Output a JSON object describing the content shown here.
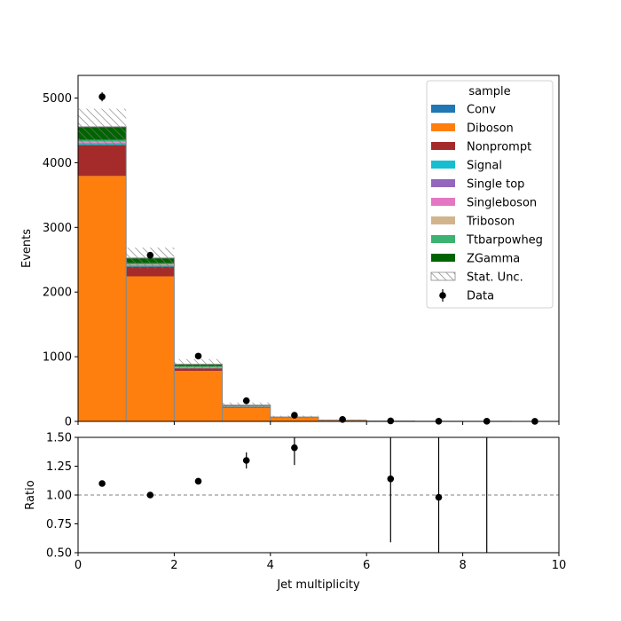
{
  "chart_data": {
    "type": "bar",
    "stacked": true,
    "x_edges": [
      0,
      1,
      2,
      3,
      4,
      5,
      6,
      7,
      8,
      9,
      10
    ],
    "xlabel": "Jet multiplicity",
    "ylabel_top": "Events",
    "ylabel_bottom": "Ratio",
    "xlim": [
      0,
      10
    ],
    "ylim_top": [
      0,
      5350
    ],
    "ylim_bottom": [
      0.5,
      1.5
    ],
    "x_ticks": [
      0,
      2,
      4,
      6,
      8,
      10
    ],
    "y_ticks_top": [
      0,
      1000,
      2000,
      3000,
      4000,
      5000
    ],
    "y_ticks_bottom": [
      0.5,
      0.75,
      1.0,
      1.25,
      1.5
    ],
    "y_tick_labels_bottom": [
      "0.50",
      "0.75",
      "1.00",
      "1.25",
      "1.50"
    ],
    "ratio_reference": 1.0,
    "legend": {
      "title": "sample",
      "placement": "top-right",
      "stat_label": "Stat. Unc.",
      "data_label": "Data"
    },
    "series": [
      {
        "name": "Conv",
        "color": "#1f77b4",
        "values": [
          5,
          3,
          1,
          0,
          0,
          0,
          0,
          0,
          0,
          0
        ]
      },
      {
        "name": "Diboson",
        "color": "#ff7f0e",
        "values": [
          3790,
          2240,
          780,
          210,
          55,
          15,
          4,
          2,
          1,
          0
        ]
      },
      {
        "name": "Nonprompt",
        "color": "#a52a2a",
        "values": [
          480,
          150,
          40,
          15,
          5,
          2,
          1,
          0,
          0,
          0
        ]
      },
      {
        "name": "Signal",
        "color": "#17becf",
        "values": [
          30,
          20,
          10,
          5,
          2,
          1,
          0,
          0,
          0,
          0
        ]
      },
      {
        "name": "Single top",
        "color": "#9467bd",
        "values": [
          5,
          3,
          2,
          1,
          0,
          0,
          0,
          0,
          0,
          0
        ]
      },
      {
        "name": "Singleboson",
        "color": "#e377c2",
        "values": [
          10,
          5,
          2,
          1,
          0,
          0,
          0,
          0,
          0,
          0
        ]
      },
      {
        "name": "Triboson",
        "color": "#d2b48c",
        "values": [
          5,
          5,
          3,
          2,
          1,
          0,
          0,
          0,
          0,
          0
        ]
      },
      {
        "name": "Ttbarpowheg",
        "color": "#3cb371",
        "values": [
          30,
          20,
          15,
          8,
          3,
          1,
          0,
          0,
          0,
          0
        ]
      },
      {
        "name": "ZGamma",
        "color": "#006400",
        "values": [
          200,
          80,
          30,
          10,
          2,
          1,
          0,
          0,
          0,
          0
        ]
      }
    ],
    "stat_unc": [
      280,
      160,
      80,
      40,
      20,
      10,
      5,
      3,
      2,
      1
    ],
    "data": {
      "x": [
        0.5,
        1.5,
        2.5,
        3.5,
        4.5,
        5.5,
        6.5,
        7.5,
        8.5,
        9.5
      ],
      "y": [
        5020,
        2570,
        1010,
        320,
        95,
        30,
        8,
        3,
        2,
        1
      ],
      "yerr": [
        71,
        51,
        32,
        18,
        10,
        5,
        3,
        2,
        1.5,
        1
      ]
    },
    "ratio": {
      "x": [
        0.5,
        1.5,
        2.5,
        3.5,
        4.5,
        6.5,
        7.5,
        8.5
      ],
      "y": [
        1.1,
        1.0,
        1.12,
        1.3,
        1.41,
        1.14,
        0.98,
        null
      ],
      "err_low": [
        0.01,
        0.01,
        0.02,
        0.07,
        0.15,
        0.55,
        0.55,
        0.9
      ],
      "err_high": [
        0.01,
        0.01,
        0.02,
        0.07,
        0.15,
        0.6,
        0.6,
        0.9
      ]
    }
  }
}
